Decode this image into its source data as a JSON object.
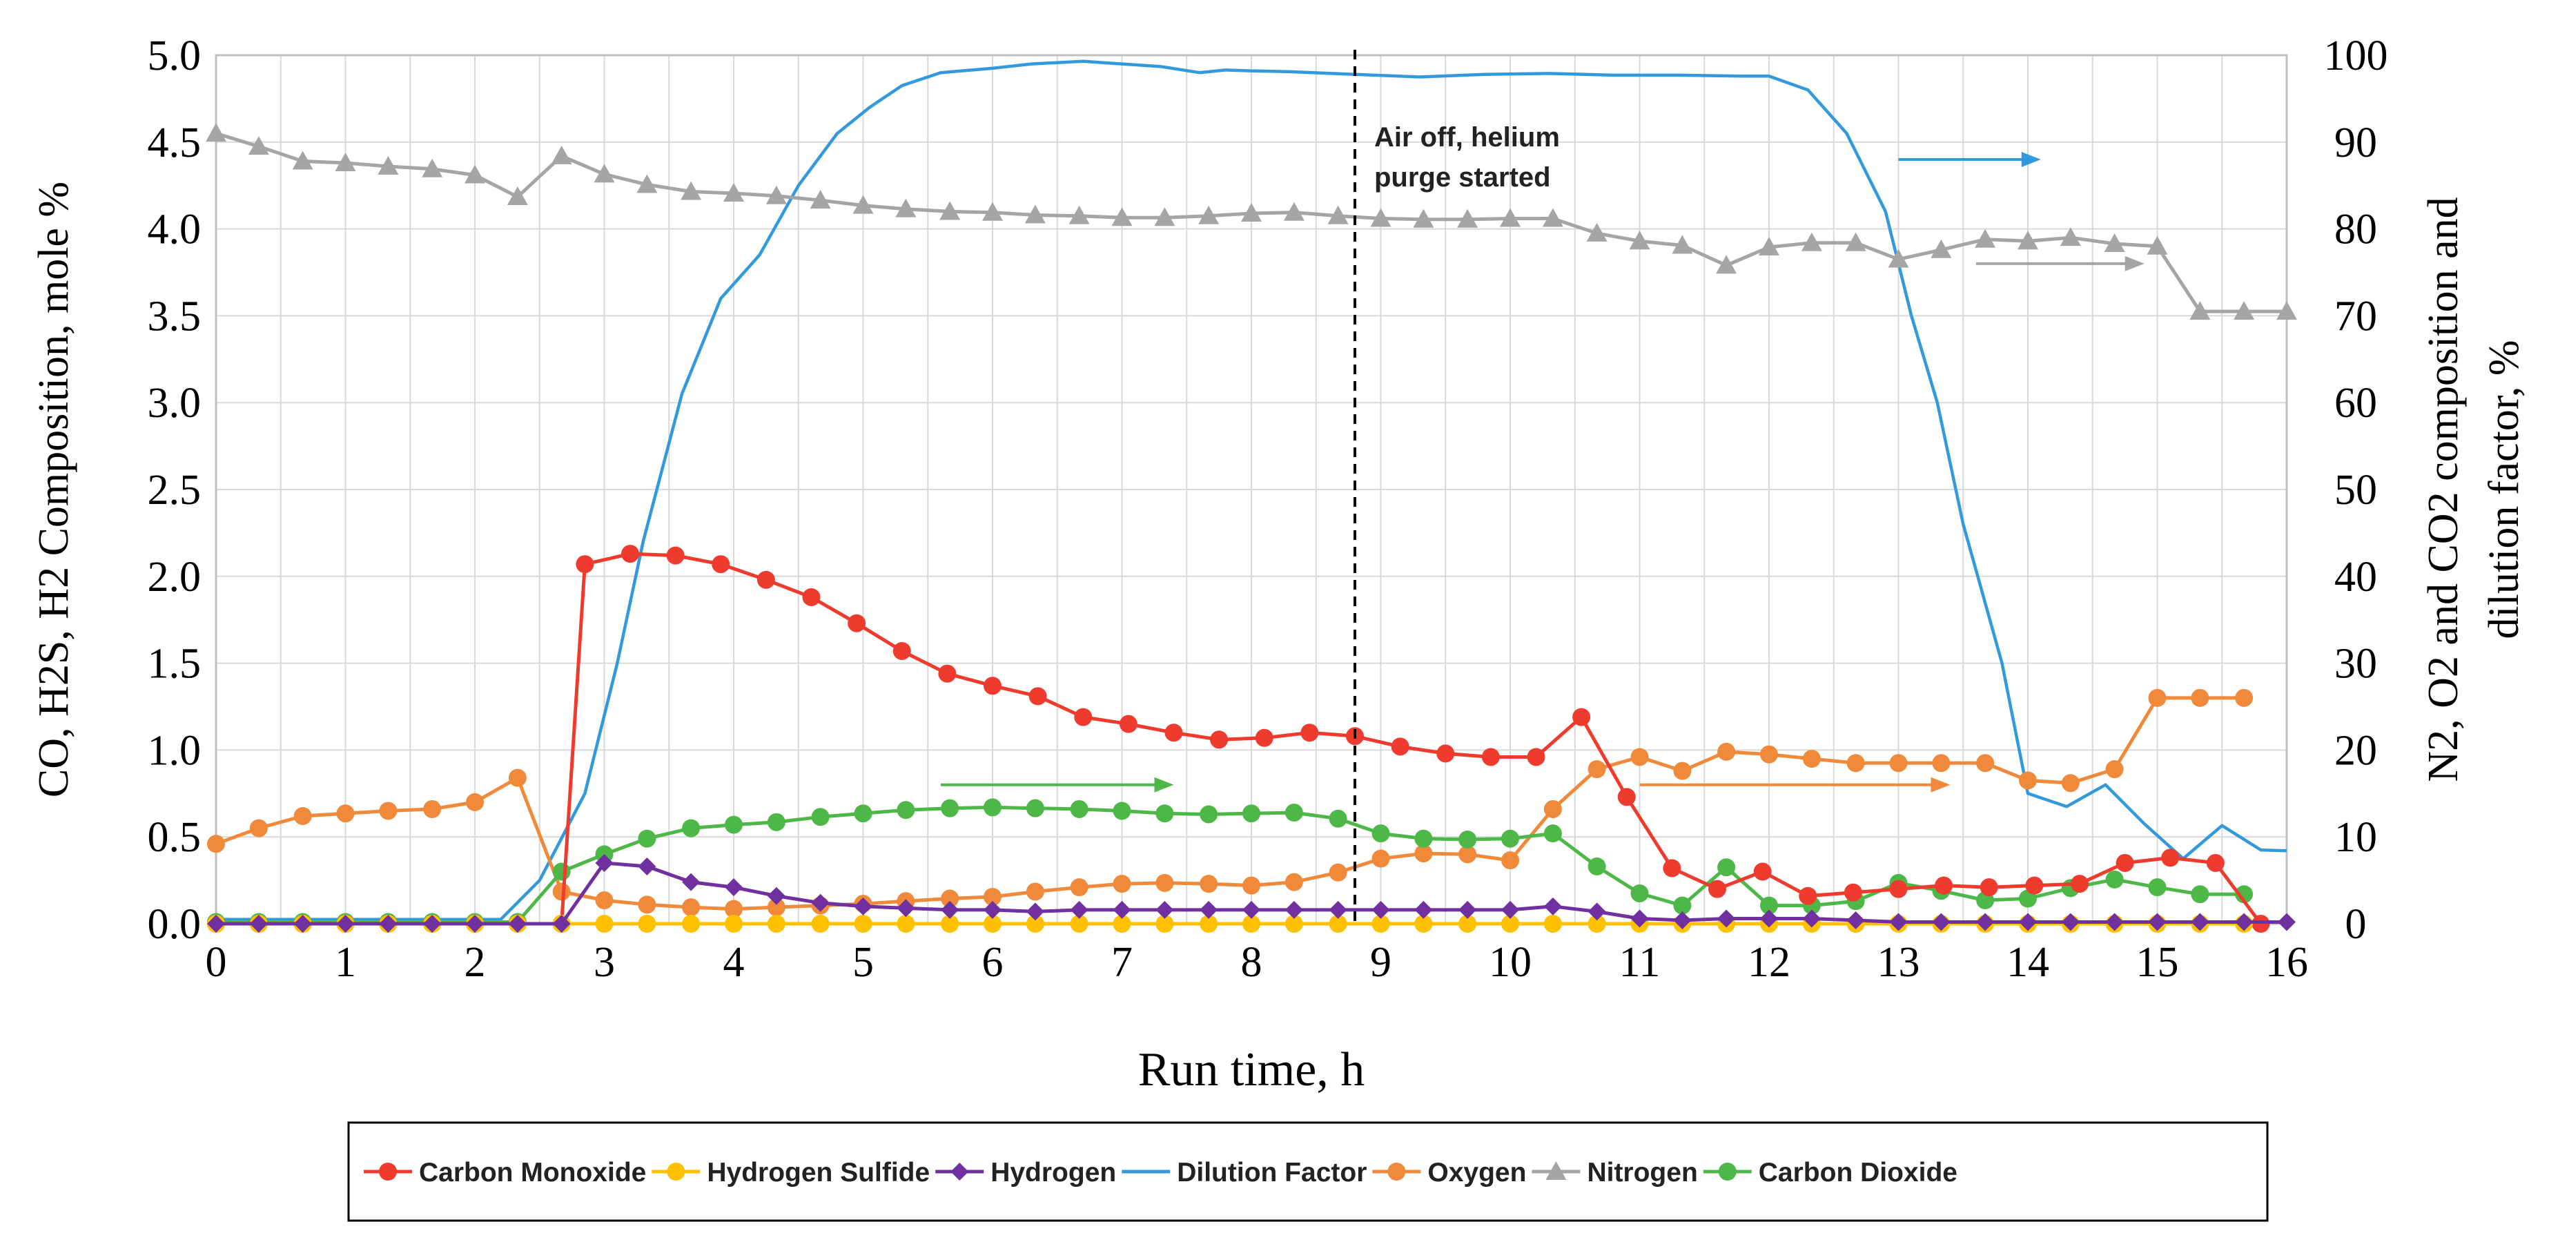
{
  "chart_data": {
    "type": "line",
    "x_label": "Run time, h",
    "y_label_left": "CO, H2S, H2 Composition, mole %",
    "y_label_right_line1": "N2, O2 and CO2 composition and",
    "y_label_right_line2": "dilution factor, %",
    "xlim": [
      0,
      16
    ],
    "ylim_left": [
      0,
      5
    ],
    "ylim_right": [
      0,
      100
    ],
    "x_ticks": [
      "0",
      "1",
      "2",
      "3",
      "4",
      "5",
      "6",
      "7",
      "8",
      "9",
      "10",
      "11",
      "12",
      "13",
      "14",
      "15",
      "16"
    ],
    "y_left_ticks": [
      "0.0",
      "0.5",
      "1.0",
      "1.5",
      "2.0",
      "2.5",
      "3.0",
      "3.5",
      "4.0",
      "4.5",
      "5.0"
    ],
    "y_right_ticks": [
      "0",
      "10",
      "20",
      "30",
      "40",
      "50",
      "60",
      "70",
      "80",
      "90",
      "100"
    ],
    "grid": true,
    "annotation": {
      "line1": "Air off, helium",
      "line2": "purge started",
      "x": 8.8
    },
    "arrows": [
      {
        "series": "Dilution Factor",
        "x_start": 13.0,
        "x_end": 14.1,
        "y_right": 88
      },
      {
        "series": "Nitrogen",
        "x_start": 13.6,
        "x_end": 14.9,
        "y_right": 76
      },
      {
        "series": "Carbon Dioxide",
        "x_start": 5.6,
        "x_end": 7.4,
        "y_right": 16
      },
      {
        "series": "Oxygen",
        "x_start": 11.0,
        "x_end": 13.4,
        "y_right": 16
      }
    ],
    "series": [
      {
        "name": "Dilution Factor",
        "color": "#3399dd",
        "axis": "right",
        "marker": "none",
        "x": [
          0,
          0.3,
          0.6,
          1.0,
          1.5,
          2.0,
          2.2,
          2.5,
          2.85,
          3.1,
          3.3,
          3.6,
          3.9,
          4.2,
          4.5,
          4.8,
          5.05,
          5.3,
          5.6,
          6.0,
          6.3,
          6.7,
          7.0,
          7.3,
          7.6,
          7.8,
          8.0,
          8.3,
          8.8,
          9.3,
          9.8,
          10.3,
          10.8,
          11.3,
          11.8,
          12.0,
          12.3,
          12.6,
          12.9,
          13.1,
          13.3,
          13.5,
          13.8,
          14.0,
          14.3,
          14.6,
          14.9,
          15.2,
          15.5,
          15.8,
          16.0
        ],
        "values": [
          0.5,
          0.5,
          0.5,
          0.5,
          0.5,
          0.5,
          0.5,
          5,
          15,
          30,
          44,
          61,
          72,
          77,
          85,
          91,
          94,
          96.5,
          98,
          98.5,
          99,
          99.3,
          99,
          98.7,
          98,
          98.3,
          98.2,
          98.1,
          97.8,
          97.5,
          97.8,
          97.9,
          97.7,
          97.7,
          97.6,
          97.6,
          96,
          91,
          82,
          70,
          60,
          46,
          30,
          15,
          13.5,
          16,
          11.5,
          7.5,
          11.3,
          8.5,
          8.4
        ]
      },
      {
        "name": "Nitrogen",
        "color": "#a5a5a5",
        "axis": "right",
        "marker": "triangle",
        "x": [
          0,
          0.33,
          0.67,
          1.0,
          1.33,
          1.67,
          2.0,
          2.33,
          2.67,
          3.0,
          3.33,
          3.67,
          4.0,
          4.33,
          4.67,
          5.0,
          5.33,
          5.67,
          6.0,
          6.33,
          6.67,
          7.0,
          7.33,
          7.67,
          8.0,
          8.33,
          8.67,
          9.0,
          9.33,
          9.67,
          10.0,
          10.33,
          10.67,
          11.0,
          11.33,
          11.67,
          12.0,
          12.33,
          12.67,
          13.0,
          13.33,
          13.67,
          14.0,
          14.33,
          14.67,
          15.0,
          15.33,
          15.67,
          16.0
        ],
        "values": [
          91,
          89.5,
          87.8,
          87.6,
          87.2,
          86.9,
          86.2,
          83.7,
          88.4,
          86.3,
          85.1,
          84.3,
          84.1,
          83.8,
          83.3,
          82.7,
          82.3,
          82,
          81.9,
          81.6,
          81.5,
          81.3,
          81.3,
          81.5,
          81.8,
          81.9,
          81.5,
          81.2,
          81.1,
          81.1,
          81.2,
          81.2,
          79.5,
          78.6,
          78.1,
          75.8,
          77.9,
          78.4,
          78.4,
          76.5,
          77.6,
          78.8,
          78.6,
          79,
          78.3,
          78,
          70.5,
          70.5,
          70.5
        ]
      },
      {
        "name": "Oxygen",
        "color": "#f08a3a",
        "axis": "right",
        "marker": "circle",
        "x": [
          0,
          0.33,
          0.67,
          1.0,
          1.33,
          1.67,
          2.0,
          2.33,
          2.67,
          3.0,
          3.33,
          3.67,
          4.0,
          4.33,
          4.67,
          5.0,
          5.33,
          5.67,
          6.0,
          6.33,
          6.67,
          7.0,
          7.33,
          7.67,
          8.0,
          8.33,
          8.67,
          9.0,
          9.33,
          9.67,
          10.0,
          10.33,
          10.67,
          11.0,
          11.33,
          11.67,
          12.0,
          12.33,
          12.67,
          13.0,
          13.33,
          13.67,
          14.0,
          14.33,
          14.67,
          15.0,
          15.33,
          15.67
        ],
        "values": [
          9.2,
          11,
          12.4,
          12.7,
          13,
          13.2,
          14,
          16.8,
          3.7,
          2.7,
          2.2,
          1.9,
          1.7,
          1.9,
          2.1,
          2.3,
          2.6,
          2.9,
          3.1,
          3.7,
          4.2,
          4.6,
          4.7,
          4.6,
          4.4,
          4.8,
          5.9,
          7.5,
          8.1,
          8,
          7.3,
          13.2,
          17.8,
          19.2,
          17.6,
          19.8,
          19.5,
          19,
          18.5,
          18.5,
          18.5,
          18.5,
          16.5,
          16.2,
          17.8,
          26,
          26,
          26
        ]
      },
      {
        "name": "Carbon Dioxide",
        "color": "#4db848",
        "axis": "right",
        "marker": "circle",
        "x": [
          0,
          0.33,
          0.67,
          1.0,
          1.33,
          1.67,
          2.0,
          2.33,
          2.67,
          3.0,
          3.33,
          3.67,
          4.0,
          4.33,
          4.67,
          5.0,
          5.33,
          5.67,
          6.0,
          6.33,
          6.67,
          7.0,
          7.33,
          7.67,
          8.0,
          8.33,
          8.67,
          9.0,
          9.33,
          9.67,
          10.0,
          10.33,
          10.67,
          11.0,
          11.33,
          11.67,
          12.0,
          12.33,
          12.67,
          13.0,
          13.33,
          13.67,
          14.0,
          14.33,
          14.67,
          15.0,
          15.33,
          15.67
        ],
        "values": [
          0.2,
          0.2,
          0.2,
          0.2,
          0.2,
          0.2,
          0.2,
          0.2,
          6,
          8,
          9.8,
          11,
          11.4,
          11.7,
          12.3,
          12.7,
          13.1,
          13.3,
          13.4,
          13.3,
          13.2,
          13,
          12.7,
          12.6,
          12.7,
          12.8,
          12.1,
          10.4,
          9.8,
          9.7,
          9.8,
          10.4,
          6.6,
          3.5,
          2.1,
          6.5,
          2.1,
          2.1,
          2.6,
          4.7,
          3.8,
          2.7,
          2.9,
          4.1,
          5.1,
          4.2,
          3.4,
          3.4
        ]
      },
      {
        "name": "Carbon Monoxide",
        "color": "#ee3b2e",
        "axis": "left",
        "marker": "circle",
        "x": [
          0,
          0.33,
          0.67,
          1.0,
          1.33,
          1.67,
          2.0,
          2.33,
          2.67,
          2.85,
          3.2,
          3.55,
          3.9,
          4.25,
          4.6,
          4.95,
          5.3,
          5.65,
          6.0,
          6.35,
          6.7,
          7.05,
          7.4,
          7.75,
          8.1,
          8.45,
          8.8,
          9.15,
          9.5,
          9.85,
          10.2,
          10.55,
          10.9,
          11.25,
          11.6,
          11.95,
          12.3,
          12.65,
          13.0,
          13.35,
          13.7,
          14.05,
          14.4,
          14.75,
          15.1,
          15.45,
          15.8
        ],
        "values": [
          0,
          0,
          0,
          0,
          0,
          0,
          0,
          0,
          0,
          2.07,
          2.13,
          2.12,
          2.07,
          1.98,
          1.88,
          1.73,
          1.57,
          1.44,
          1.37,
          1.31,
          1.19,
          1.15,
          1.1,
          1.06,
          1.07,
          1.1,
          1.08,
          1.02,
          0.98,
          0.96,
          0.96,
          1.19,
          0.73,
          0.32,
          0.2,
          0.3,
          0.16,
          0.18,
          0.2,
          0.22,
          0.21,
          0.22,
          0.23,
          0.35,
          0.38,
          0.35,
          0
        ]
      },
      {
        "name": "Hydrogen Sulfide",
        "color": "#ffc000",
        "axis": "left",
        "marker": "circle",
        "x": [
          0,
          0.33,
          0.67,
          1.0,
          1.33,
          1.67,
          2.0,
          2.33,
          2.67,
          3.0,
          3.33,
          3.67,
          4.0,
          4.33,
          4.67,
          5.0,
          5.33,
          5.67,
          6.0,
          6.33,
          6.67,
          7.0,
          7.33,
          7.67,
          8.0,
          8.33,
          8.67,
          9.0,
          9.33,
          9.67,
          10.0,
          10.33,
          10.67,
          11.0,
          11.33,
          11.67,
          12.0,
          12.33,
          12.67,
          13.0,
          13.33,
          13.67,
          14.0,
          14.33,
          14.67,
          15.0,
          15.33,
          15.67
        ],
        "values": [
          0,
          0,
          0,
          0,
          0,
          0,
          0,
          0,
          0,
          0,
          0,
          0,
          0,
          0,
          0,
          0,
          0,
          0,
          0,
          0,
          0,
          0,
          0,
          0,
          0,
          0,
          0,
          0,
          0,
          0,
          0,
          0,
          0,
          0,
          0,
          0,
          0,
          0,
          0,
          0,
          0,
          0,
          0,
          0,
          0,
          0,
          0,
          0
        ]
      },
      {
        "name": "Hydrogen",
        "color": "#7030a0",
        "axis": "left",
        "marker": "diamond",
        "x": [
          0,
          0.33,
          0.67,
          1.0,
          1.33,
          1.67,
          2.0,
          2.33,
          2.67,
          3.0,
          3.33,
          3.67,
          4.0,
          4.33,
          4.67,
          5.0,
          5.33,
          5.67,
          6.0,
          6.33,
          6.67,
          7.0,
          7.33,
          7.67,
          8.0,
          8.33,
          8.67,
          9.0,
          9.33,
          9.67,
          10.0,
          10.33,
          10.67,
          11.0,
          11.33,
          11.67,
          12.0,
          12.33,
          12.67,
          13.0,
          13.33,
          13.67,
          14.0,
          14.33,
          14.67,
          15.0,
          15.33,
          15.67,
          16.0
        ],
        "values": [
          0,
          0,
          0,
          0,
          0,
          0,
          0,
          0,
          0,
          0.35,
          0.33,
          0.24,
          0.21,
          0.16,
          0.12,
          0.1,
          0.09,
          0.08,
          0.08,
          0.07,
          0.08,
          0.08,
          0.08,
          0.08,
          0.08,
          0.08,
          0.08,
          0.08,
          0.08,
          0.08,
          0.08,
          0.1,
          0.07,
          0.03,
          0.02,
          0.03,
          0.03,
          0.03,
          0.02,
          0.01,
          0.01,
          0.01,
          0.01,
          0.01,
          0.01,
          0.01,
          0.01,
          0.01,
          0.01
        ]
      }
    ],
    "legend": {
      "position": "bottom",
      "entries": [
        "Carbon Monoxide",
        "Hydrogen Sulfide",
        "Hydrogen",
        "Dilution Factor",
        "Oxygen",
        "Nitrogen",
        "Carbon Dioxide"
      ]
    }
  }
}
